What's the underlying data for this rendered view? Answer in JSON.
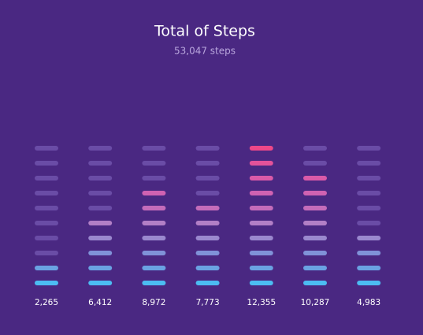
{
  "chart_data": {
    "type": "segmented-bar",
    "title": "Total of Steps",
    "subtitle": "53,047 steps",
    "categories": [
      null,
      null,
      null,
      null,
      null,
      null,
      null
    ],
    "values": [
      2265,
      6412,
      8972,
      7773,
      12355,
      10287,
      4983
    ],
    "value_labels": [
      "2,265",
      "6,412",
      "8,972",
      "7,773",
      "12,355",
      "10,287",
      "4,983"
    ],
    "ylim": [
      0,
      12500
    ],
    "colors": [
      "#4cbcf2",
      "#6aa2e2",
      "#8092d8",
      "#9a88ce",
      "#b27fc6",
      "#c46cba",
      "#d062b2",
      "#da5aa8",
      "#e4529a",
      "#ee4888"
    ],
    "off_color": "#6a4ca6"
  }
}
